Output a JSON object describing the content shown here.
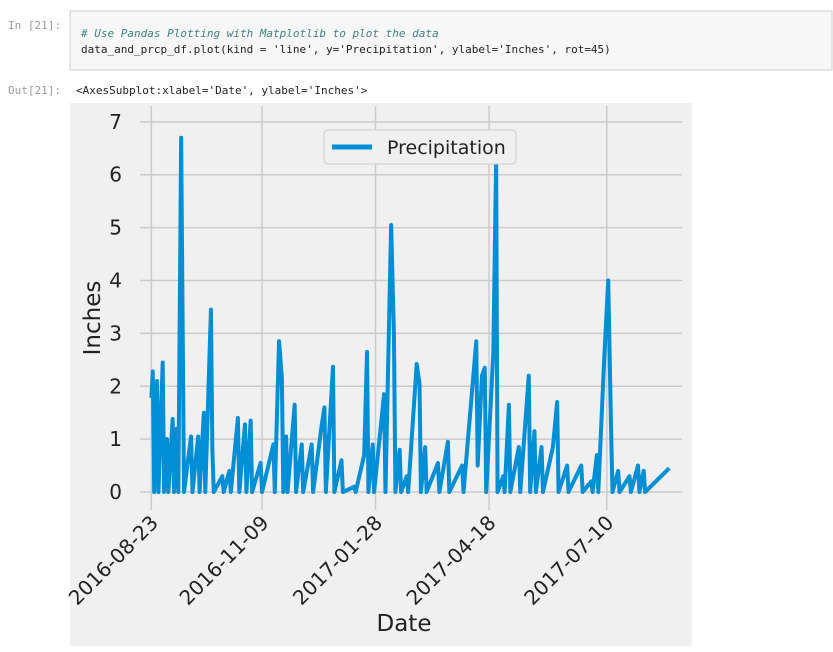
{
  "cell": {
    "in_prompt": "In [21]:",
    "code": [
      "# Use Pandas Plotting with Matplotlib to plot the data",
      "data_and_prcp_df.plot(kind = 'line', y='Precipitation', ylabel='Inches', rot=45)"
    ],
    "out_prompt": "Out[21]:",
    "output": "<AxesSubplot:xlabel='Date', ylabel='Inches'>"
  },
  "chart_data": {
    "type": "line",
    "xlabel": "Date",
    "ylabel": "Inches",
    "x": [
      "2016-08-23",
      "2016-08-24",
      "2016-08-25",
      "2016-08-27",
      "2016-08-28",
      "2016-08-31",
      "2016-09-01",
      "2016-09-03",
      "2016-09-04",
      "2016-09-07",
      "2016-09-08",
      "2016-09-10",
      "2016-09-11",
      "2016-09-13",
      "2016-09-14",
      "2016-09-15",
      "2016-09-20",
      "2016-09-21",
      "2016-09-25",
      "2016-09-26",
      "2016-09-29",
      "2016-09-30",
      "2016-10-04",
      "2016-10-05",
      "2016-10-06",
      "2016-10-12",
      "2016-10-13",
      "2016-10-17",
      "2016-10-18",
      "2016-10-23",
      "2016-10-24",
      "2016-10-28",
      "2016-10-29",
      "2016-11-01",
      "2016-11-02",
      "2016-11-08",
      "2016-11-09",
      "2016-11-17",
      "2016-11-18",
      "2016-11-21",
      "2016-11-23",
      "2016-11-24",
      "2016-11-26",
      "2016-11-27",
      "2016-12-02",
      "2016-12-03",
      "2016-12-07",
      "2016-12-08",
      "2016-12-14",
      "2016-12-15",
      "2016-12-21",
      "2016-12-23",
      "2016-12-24",
      "2016-12-29",
      "2016-12-30",
      "2017-01-04",
      "2017-01-05",
      "2017-01-13",
      "2017-01-14",
      "2017-01-20",
      "2017-01-22",
      "2017-01-23",
      "2017-01-26",
      "2017-01-27",
      "2017-02-03",
      "2017-02-04",
      "2017-02-08",
      "2017-02-10",
      "2017-02-11",
      "2017-02-14",
      "2017-02-15",
      "2017-02-19",
      "2017-02-20",
      "2017-02-26",
      "2017-02-28",
      "2017-03-01",
      "2017-03-04",
      "2017-03-05",
      "2017-03-13",
      "2017-03-14",
      "2017-03-20",
      "2017-03-21",
      "2017-03-30",
      "2017-03-31",
      "2017-04-09",
      "2017-04-10",
      "2017-04-13",
      "2017-04-15",
      "2017-04-16",
      "2017-04-21",
      "2017-04-23",
      "2017-04-24",
      "2017-04-28",
      "2017-04-29",
      "2017-05-02",
      "2017-05-03",
      "2017-05-09",
      "2017-05-10",
      "2017-05-16",
      "2017-05-17",
      "2017-05-20",
      "2017-05-21",
      "2017-05-25",
      "2017-05-26",
      "2017-06-02",
      "2017-06-05",
      "2017-06-06",
      "2017-06-12",
      "2017-06-13",
      "2017-06-22",
      "2017-06-23",
      "2017-06-29",
      "2017-06-30",
      "2017-07-03",
      "2017-07-04",
      "2017-07-08",
      "2017-07-11",
      "2017-07-13",
      "2017-07-14",
      "2017-07-18",
      "2017-07-19",
      "2017-07-26",
      "2017-07-27",
      "2017-08-01",
      "2017-08-02",
      "2017-08-05",
      "2017-08-06",
      "2017-08-23"
    ],
    "series": [
      {
        "name": "Precipitation",
        "color": "#008fd5",
        "values": [
          1.78,
          2.28,
          0,
          2.1,
          0,
          2.45,
          0,
          1.0,
          0,
          1.38,
          0,
          1.2,
          0,
          6.7,
          3.35,
          0,
          1.05,
          0,
          1.05,
          0,
          1.5,
          0,
          3.45,
          0.8,
          0,
          0.3,
          0,
          0.4,
          0,
          1.4,
          0,
          1.28,
          0,
          1.35,
          0,
          0.55,
          0,
          0.9,
          0,
          2.85,
          2.15,
          0,
          1.05,
          0,
          1.65,
          0,
          0.9,
          0,
          0.9,
          0,
          1.25,
          1.6,
          0,
          2.37,
          0,
          0.6,
          0,
          0.1,
          0,
          0.7,
          2.65,
          0,
          0.9,
          0,
          1.85,
          0,
          5.05,
          2.95,
          0,
          0.8,
          0,
          0.3,
          0,
          2.42,
          2.05,
          0,
          0.85,
          0,
          0.55,
          0,
          0.95,
          0,
          0.5,
          0,
          2.85,
          0.5,
          2.2,
          2.35,
          0,
          2.62,
          6.28,
          0,
          0.3,
          0,
          1.65,
          0,
          0.85,
          0,
          2.2,
          0,
          1.15,
          0,
          0.85,
          0,
          0.85,
          1.7,
          0,
          0.5,
          0,
          0.5,
          0,
          0.2,
          0,
          0.7,
          0,
          2.42,
          4.0,
          1.2,
          0,
          0.4,
          0,
          0.3,
          0,
          0.5,
          0,
          0.4,
          0,
          0.45
        ]
      }
    ],
    "xlim": [
      "2016-08-15",
      "2017-09-01"
    ],
    "xticks": [
      "2016-08-23",
      "2016-11-09",
      "2017-01-28",
      "2017-04-18",
      "2017-07-10"
    ],
    "xtick_rotation": 45,
    "ylim": [
      -0.34,
      7.3
    ],
    "yticks": [
      0,
      1,
      2,
      3,
      4,
      5,
      6,
      7
    ],
    "grid": true,
    "legend": "upper center"
  }
}
